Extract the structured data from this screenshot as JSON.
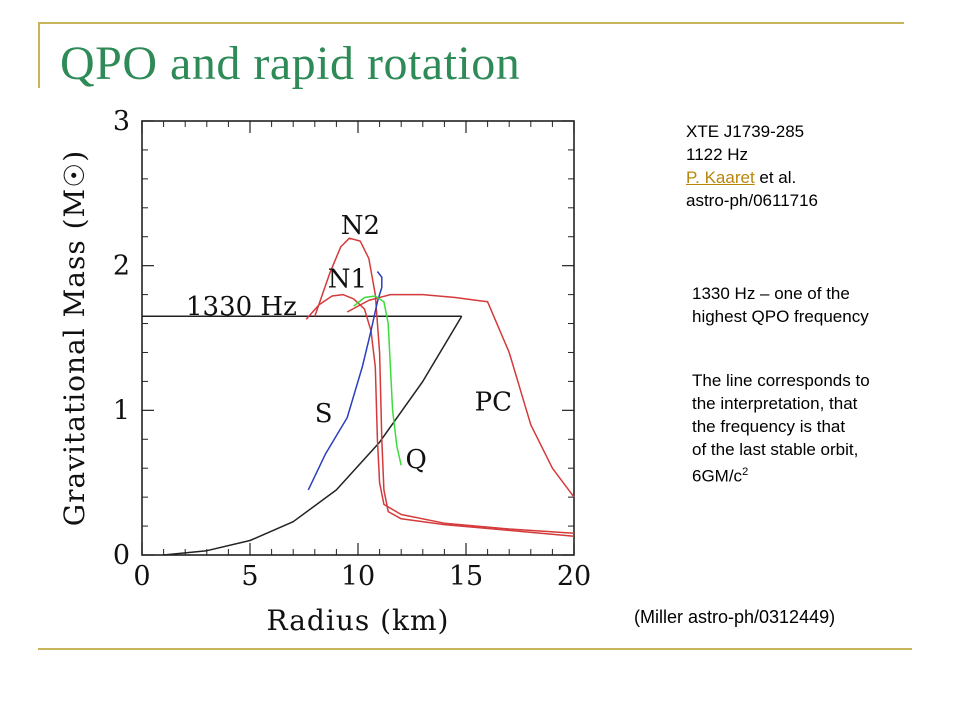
{
  "slide": {
    "title": "QPO and rapid rotation",
    "credit": "(Miller astro-ph/0312449)"
  },
  "notes": {
    "source": {
      "line1": "XTE J1739-285",
      "line2": "1122 Hz",
      "author_link": "P. Kaaret",
      "author_suffix": " et al.",
      "line4": "astro-ph/0611716"
    },
    "qpo": {
      "line1": "1330 Hz – one of the",
      "line2": "highest QPO frequency"
    },
    "interpretation": {
      "line1": "The line corresponds to",
      "line2": "the interpretation, that",
      "line3": "the frequency is that",
      "line4": "of the last stable orbit,",
      "line5_main": "6GM/c",
      "line5_sup": "2"
    }
  },
  "colors": {
    "title": "#2e8b57",
    "rule": "#c8b45a",
    "link": "#b8860b",
    "curve_red": "#d43a3a",
    "curve_blue": "#2a3fbf",
    "curve_green": "#3ddc3d",
    "curve_black": "#222222"
  },
  "chart_data": {
    "type": "line",
    "xlabel": "Radius (km)",
    "ylabel": "Gravitational Mass (M☉)",
    "xlim": [
      0,
      20
    ],
    "ylim": [
      0,
      3
    ],
    "xticks": [
      0,
      5,
      10,
      15,
      20
    ],
    "yticks": [
      0,
      1,
      2,
      3
    ],
    "grid": false,
    "annotations": [
      {
        "text": "1330 Hz",
        "x": 3.6,
        "y": 1.66
      },
      {
        "text": "N2",
        "x": 9.2,
        "y": 2.22
      },
      {
        "text": "N1",
        "x": 8.6,
        "y": 1.85
      },
      {
        "text": "S",
        "x": 8.0,
        "y": 0.92
      },
      {
        "text": "Q",
        "x": 12.2,
        "y": 0.6
      },
      {
        "text": "PC",
        "x": 15.4,
        "y": 1.0
      }
    ],
    "series": [
      {
        "id": "freq-1330hz-line",
        "color": "black",
        "x": [
          0.0,
          14.8
        ],
        "y": [
          1.65,
          1.65
        ]
      },
      {
        "id": "last-stable-orbit",
        "color": "black",
        "x": [
          1.0,
          3.0,
          5.0,
          7.0,
          9.0,
          11.0,
          13.0,
          14.8
        ],
        "y": [
          0.0,
          0.03,
          0.1,
          0.23,
          0.45,
          0.78,
          1.2,
          1.65
        ]
      },
      {
        "id": "eos-n2",
        "color": "red",
        "x": [
          8.0,
          8.7,
          9.2,
          9.6,
          10.1,
          10.5,
          10.8,
          11.0,
          11.1,
          11.2,
          11.4,
          12.0,
          14.0,
          17.0,
          20.0
        ],
        "y": [
          1.65,
          1.95,
          2.13,
          2.19,
          2.17,
          2.05,
          1.8,
          1.4,
          0.8,
          0.45,
          0.3,
          0.25,
          0.21,
          0.17,
          0.13
        ]
      },
      {
        "id": "eos-n1",
        "color": "red",
        "x": [
          7.6,
          8.2,
          8.8,
          9.3,
          9.8,
          10.3,
          10.6,
          10.8,
          10.9,
          11.0,
          11.2,
          12.0,
          14.0,
          17.0,
          20.0
        ],
        "y": [
          1.63,
          1.73,
          1.79,
          1.8,
          1.77,
          1.7,
          1.55,
          1.3,
          0.8,
          0.5,
          0.35,
          0.28,
          0.22,
          0.18,
          0.15
        ]
      },
      {
        "id": "eos-pc",
        "color": "red",
        "x": [
          9.5,
          10.5,
          11.5,
          13.0,
          14.5,
          15.5,
          16.0,
          17.0,
          18.0,
          19.0,
          20.0
        ],
        "y": [
          1.68,
          1.76,
          1.8,
          1.8,
          1.78,
          1.76,
          1.75,
          1.4,
          0.9,
          0.6,
          0.4
        ]
      },
      {
        "id": "eos-s",
        "color": "blue",
        "x": [
          7.7,
          8.5,
          9.5,
          10.2,
          10.6,
          10.9,
          11.1,
          11.1,
          10.9
        ],
        "y": [
          0.45,
          0.7,
          0.95,
          1.3,
          1.55,
          1.75,
          1.85,
          1.92,
          1.96
        ]
      },
      {
        "id": "eos-q",
        "color": "green",
        "x": [
          9.8,
          10.3,
          10.8,
          11.2,
          11.4,
          11.5,
          11.6,
          11.8,
          12.0
        ],
        "y": [
          1.72,
          1.78,
          1.79,
          1.75,
          1.6,
          1.3,
          1.0,
          0.75,
          0.62
        ]
      }
    ]
  }
}
